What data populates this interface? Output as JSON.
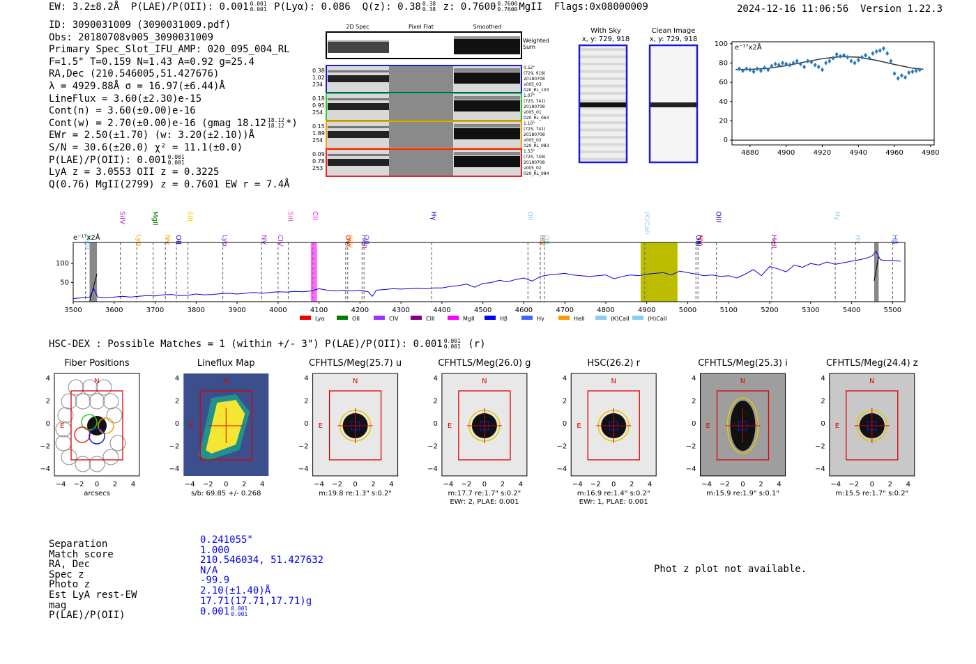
{
  "header": {
    "ew": "EW: 3.2±8.2Å",
    "plae": "P(LAE)/P(OII): 0.001",
    "plae_frac": [
      "0.001",
      "0.001"
    ],
    "plya": "P(Lyα): 0.086",
    "qz": "Q(z): 0.38",
    "qz_frac": [
      "0.38",
      "0.38"
    ],
    "z": "z: 0.7600",
    "z_frac": [
      "0.7600",
      "0.7600"
    ],
    "line": "MgII",
    "flags": "Flags:0x08000009",
    "datetime": "2024-12-16 11:06:56",
    "version": "Version 1.22.3"
  },
  "info": {
    "id": "ID: 3090031009 (3090031009.pdf)",
    "obs": "Obs: 20180708v005_3090031009",
    "primary": "Primary Spec_Slot_IFU_AMP: 020_095_004_RL",
    "params": "F=1.5\"  T=0.159  N=1.43  A=0.92  g=25.4",
    "radec": "RA,Dec (210.546005,51.427676)",
    "lambda": "λ = 4929.88Å  σ = 16.97(±6.44)Å",
    "lineflux": "LineFlux = 3.60(±2.30)e-15",
    "contn": "Cont(n) = 3.60(±0.00)e-16",
    "contw": "Cont(w) = 2.70(±0.00)e-16 (gmag 18.12",
    "contw_frac": [
      "18.12",
      "18.12"
    ],
    "contw_end": "*)",
    "ewr": "EWr = 2.50(±1.70)  (w: 3.20(±2.10))Å",
    "sn": "S/N = 30.6(±20.0)  χ² = 11.1(±0.0)",
    "plae": "P(LAE)/P(OII): 0.001",
    "plae_frac": [
      "0.001",
      "0.001"
    ],
    "lyaz": "LyA z = 3.0553  OII z = 0.3225",
    "q": "Q(0.76) MgII(2799) z = 0.7601  EW r = 7.4Å"
  },
  "stamps": {
    "headers": [
      "2D Spec",
      "Pixel Flat",
      "Smoothed"
    ],
    "weighted": "Weighted Sum",
    "rows": [
      {
        "left": [
          "0.38",
          "1.02",
          "234"
        ],
        "right": [
          "0.52\"",
          "(729, 918)",
          "20180708",
          "v005_03",
          "020_RL_103"
        ],
        "color": "#1a1adc"
      },
      {
        "left": [
          "0.18",
          "0.95",
          "254"
        ],
        "right": [
          "1.07\"",
          "(725, 741)",
          "20180708",
          "v005_01",
          "020_RL_063"
        ],
        "color": "#22cc22"
      },
      {
        "left": [
          "0.15",
          "1.89",
          "254"
        ],
        "right": [
          "1.10\"",
          "(725, 741)",
          "20180708",
          "v005_02",
          "020_RL_083"
        ],
        "color": "#ff9900"
      },
      {
        "left": [
          "0.09",
          "0.78",
          "253"
        ],
        "right": [
          "1.53\"",
          "(725, 749)",
          "20180708",
          "v005_02",
          "020_RL_084"
        ],
        "color": "#ee2222"
      }
    ]
  },
  "cutouts2d": {
    "with_sky": "With Sky",
    "with_sky_xy": "x, y: 729, 918",
    "clean": "Clean Image",
    "clean_xy": "x, y: 729, 918"
  },
  "chart_data": [
    {
      "type": "scatter",
      "title": "",
      "ylabel": "e⁻¹⁷x2Å",
      "xlim": [
        4870,
        4982
      ],
      "ylim": [
        -5,
        102
      ],
      "xticks": [
        4880,
        4900,
        4920,
        4940,
        4960,
        4980
      ],
      "yticks": [
        0,
        20,
        40,
        60,
        80,
        100
      ],
      "x": [
        4874,
        4876,
        4878,
        4880,
        4882,
        4884,
        4886,
        4888,
        4890,
        4892,
        4894,
        4896,
        4898,
        4900,
        4902,
        4904,
        4906,
        4908,
        4910,
        4912,
        4914,
        4916,
        4918,
        4920,
        4922,
        4924,
        4926,
        4928,
        4930,
        4932,
        4934,
        4936,
        4938,
        4940,
        4942,
        4944,
        4946,
        4948,
        4950,
        4952,
        4954,
        4956,
        4958,
        4960,
        4962,
        4964,
        4966,
        4968,
        4970,
        4972,
        4974
      ],
      "y": [
        74,
        72,
        74,
        73,
        71,
        74,
        72,
        75,
        73,
        77,
        79,
        78,
        80,
        79,
        78,
        80,
        82,
        79,
        76,
        82,
        81,
        78,
        76,
        73,
        80,
        82,
        85,
        89,
        87,
        88,
        86,
        82,
        80,
        83,
        86,
        88,
        85,
        90,
        92,
        93,
        95,
        90,
        82,
        69,
        64,
        67,
        65,
        70,
        71,
        72,
        73
      ],
      "fit_x": [
        4872,
        4880,
        4890,
        4900,
        4910,
        4920,
        4930,
        4940,
        4950,
        4960,
        4970,
        4976
      ],
      "fit_y": [
        73.2,
        73.4,
        74.5,
        77.2,
        80.9,
        84.5,
        86.7,
        86.1,
        82.8,
        78.5,
        74.7,
        73.5
      ]
    },
    {
      "type": "line",
      "title": "",
      "ylabel": "e⁻¹⁷x2Å",
      "xlim": [
        3500,
        5530
      ],
      "ylim": [
        0,
        155
      ],
      "xticks": [
        3500,
        3600,
        3700,
        3800,
        3900,
        4000,
        4100,
        4200,
        4300,
        4400,
        4500,
        4600,
        4700,
        4800,
        4900,
        5000,
        5100,
        5200,
        5300,
        5400,
        5500
      ],
      "yticks": [
        50,
        100
      ],
      "x": [
        3500,
        3520,
        3540,
        3550,
        3560,
        3580,
        3600,
        3620,
        3640,
        3660,
        3680,
        3700,
        3720,
        3740,
        3760,
        3780,
        3800,
        3820,
        3840,
        3860,
        3880,
        3900,
        3920,
        3940,
        3960,
        3980,
        4000,
        4020,
        4040,
        4060,
        4080,
        4100,
        4120,
        4140,
        4160,
        4180,
        4200,
        4220,
        4230,
        4240,
        4260,
        4280,
        4300,
        4320,
        4340,
        4360,
        4380,
        4400,
        4420,
        4440,
        4460,
        4480,
        4500,
        4520,
        4540,
        4560,
        4580,
        4600,
        4620,
        4640,
        4660,
        4680,
        4700,
        4720,
        4740,
        4760,
        4780,
        4800,
        4820,
        4840,
        4860,
        4880,
        4900,
        4920,
        4940,
        4960,
        4980,
        5000,
        5020,
        5040,
        5060,
        5080,
        5100,
        5120,
        5140,
        5160,
        5180,
        5200,
        5220,
        5240,
        5260,
        5280,
        5300,
        5320,
        5340,
        5360,
        5380,
        5400,
        5420,
        5440,
        5450,
        5460,
        5470,
        5480,
        5500,
        5520
      ],
      "y": [
        8,
        10,
        12,
        34,
        12,
        10,
        12,
        14,
        12,
        14,
        16,
        15,
        18,
        19,
        16,
        17,
        20,
        18,
        19,
        21,
        22,
        20,
        22,
        24,
        22,
        24,
        26,
        25,
        27,
        26,
        28,
        34,
        30,
        28,
        30,
        28,
        30,
        26,
        14,
        30,
        32,
        34,
        33,
        34,
        35,
        34,
        36,
        36,
        40,
        42,
        46,
        38,
        48,
        50,
        56,
        52,
        58,
        62,
        54,
        66,
        70,
        72,
        74,
        70,
        68,
        66,
        68,
        70,
        60,
        66,
        70,
        68,
        72,
        74,
        76,
        70,
        80,
        76,
        72,
        68,
        70,
        66,
        68,
        62,
        72,
        84,
        68,
        92,
        86,
        78,
        96,
        90,
        100,
        96,
        104,
        98,
        102,
        106,
        110,
        115,
        120,
        132,
        110,
        108,
        108,
        106
      ],
      "line_markers": [
        {
          "label": "MgII",
          "x": 3530,
          "color": "#87ceeb"
        },
        {
          "label": "SiIV",
          "x": 3615,
          "color": "#9933cc"
        },
        {
          "label": "Lyα",
          "x": 3655,
          "color": "#ff9900"
        },
        {
          "label": "MgII",
          "x": 3695,
          "color": "#008000"
        },
        {
          "label": "NV",
          "x": 3725,
          "color": "#ff9900"
        },
        {
          "label": "OII",
          "x": 3752,
          "color": "#0000cc"
        },
        {
          "label": "SiII",
          "x": 3780,
          "color": "#ffcc00"
        },
        {
          "label": "Lyα",
          "x": 3865,
          "color": "#9933cc"
        },
        {
          "label": "NV",
          "x": 3960,
          "color": "#9933cc"
        },
        {
          "label": "CIV",
          "x": 4000,
          "color": "#9933cc"
        },
        {
          "label": "SiII",
          "x": 4025,
          "color": "#cc66cc"
        },
        {
          "label": "CII",
          "x": 4085,
          "color": "#ff00ff"
        },
        {
          "label": "OVI",
          "x": 4165,
          "color": "#ee0000"
        },
        {
          "label": "SiIV",
          "x": 4170,
          "color": "#ffaa00"
        },
        {
          "label": "HeII",
          "x": 4205,
          "color": "#990099"
        },
        {
          "label": "OII",
          "x": 4210,
          "color": "#4466ff"
        },
        {
          "label": "Hγ",
          "x": 4375,
          "color": "#0000cc"
        },
        {
          "label": "OII",
          "x": 4610,
          "color": "#87ceeb"
        },
        {
          "label": "Hδ",
          "x": 4640,
          "color": "#4466ff"
        },
        {
          "label": "OII",
          "x": 4650,
          "color": "#87ceeb"
        },
        {
          "label": "CIV",
          "x": 4640,
          "color": "#ffaa00"
        },
        {
          "label": "(K)CaII",
          "x": 4895,
          "color": "#87ceeb"
        },
        {
          "label": "NV",
          "x": 5025,
          "color": "#ee0000"
        },
        {
          "label": "OIII",
          "x": 5020,
          "color": "#0000cc"
        },
        {
          "label": "OIII",
          "x": 5070,
          "color": "#0000cc"
        },
        {
          "label": "HeII",
          "x": 5205,
          "color": "#990099"
        },
        {
          "label": "Hγ",
          "x": 5360,
          "color": "#87ceeb"
        },
        {
          "label": "Hγ",
          "x": 5410,
          "color": "#87ceeb"
        },
        {
          "label": "Hβ",
          "x": 5500,
          "color": "#4466ff"
        }
      ],
      "legend": [
        {
          "label": "Lyα",
          "color": "#ee0000"
        },
        {
          "label": "OII",
          "color": "#008000"
        },
        {
          "label": "CIV",
          "color": "#9933ff"
        },
        {
          "label": "CIII",
          "color": "#880088"
        },
        {
          "label": "MgII",
          "color": "#ff00ff"
        },
        {
          "label": "Hβ",
          "color": "#0000ee"
        },
        {
          "label": "Hγ",
          "color": "#4466ff"
        },
        {
          "label": "HeII",
          "color": "#ff9900"
        },
        {
          "label": "(K)CaII",
          "color": "#87ceeb"
        },
        {
          "label": "(H)CaII",
          "color": "#87ceeb"
        }
      ],
      "highlight_band": [
        4885,
        4975
      ],
      "mgii_band": [
        4080,
        4095
      ]
    }
  ],
  "hsc": {
    "line": "HSC-DEX : Possible Matches = 1 (within +/- 3\")  P(LAE)/P(OII): 0.001",
    "frac": [
      "0.001",
      "0.001"
    ],
    "suffix": "(r)"
  },
  "cutouts": [
    {
      "title": "Fiber Positions",
      "caption": "arcsecs",
      "caption2": "",
      "type": "fiber"
    },
    {
      "title": "Lineflux Map",
      "caption": "s/b: 69.85 +/- 0.268",
      "caption2": "",
      "type": "lineflux"
    },
    {
      "title": "CFHTLS/Meg(25.7) u",
      "caption": "m:19.8  re:1.3\"  s:0.2\"",
      "caption2": "",
      "type": "u"
    },
    {
      "title": "CFHTLS/Meg(26.0) g",
      "caption": "m:17.7  re:1.7\"  s:0.2\"",
      "caption2": "EWr: 2, PLAE: 0.001",
      "type": "g"
    },
    {
      "title": "HSC(26.2) r",
      "caption": "m:16.9  re:1.4\"  s:0.2\"",
      "caption2": "EWr: 1, PLAE: 0.001",
      "type": "r"
    },
    {
      "title": "CFHTLS/Meg(25.3) i",
      "caption": "m:15.9  re:1.9\"  s:0.1\"",
      "caption2": "",
      "type": "i"
    },
    {
      "title": "CFHTLS/Meg(24.4) z",
      "caption": "m:15.5  re:1.7\"  s:0.2\"",
      "caption2": "",
      "type": "z"
    }
  ],
  "cutout_axis": {
    "ticks": [
      "4",
      "2",
      "0",
      "−2",
      "−4"
    ],
    "xticks": [
      "−4",
      "−2",
      "0",
      "2",
      "4"
    ],
    "north": "N",
    "east": "E"
  },
  "match": {
    "labels": [
      "Separation",
      "Match score",
      "RA, Dec",
      "Spec z",
      "Photo z",
      "Est LyA rest-EW",
      "mag",
      "P(LAE)/P(OII)"
    ],
    "values": [
      "0.241055\"",
      "1.000",
      "210.546034, 51.427632",
      "N/A",
      "-99.9",
      "2.10(±1.40)Å",
      "17.71(17.71,17.71)g",
      "0.001"
    ],
    "plae_frac": [
      "0.001",
      "0.001"
    ]
  },
  "photz": "Phot z plot not available."
}
